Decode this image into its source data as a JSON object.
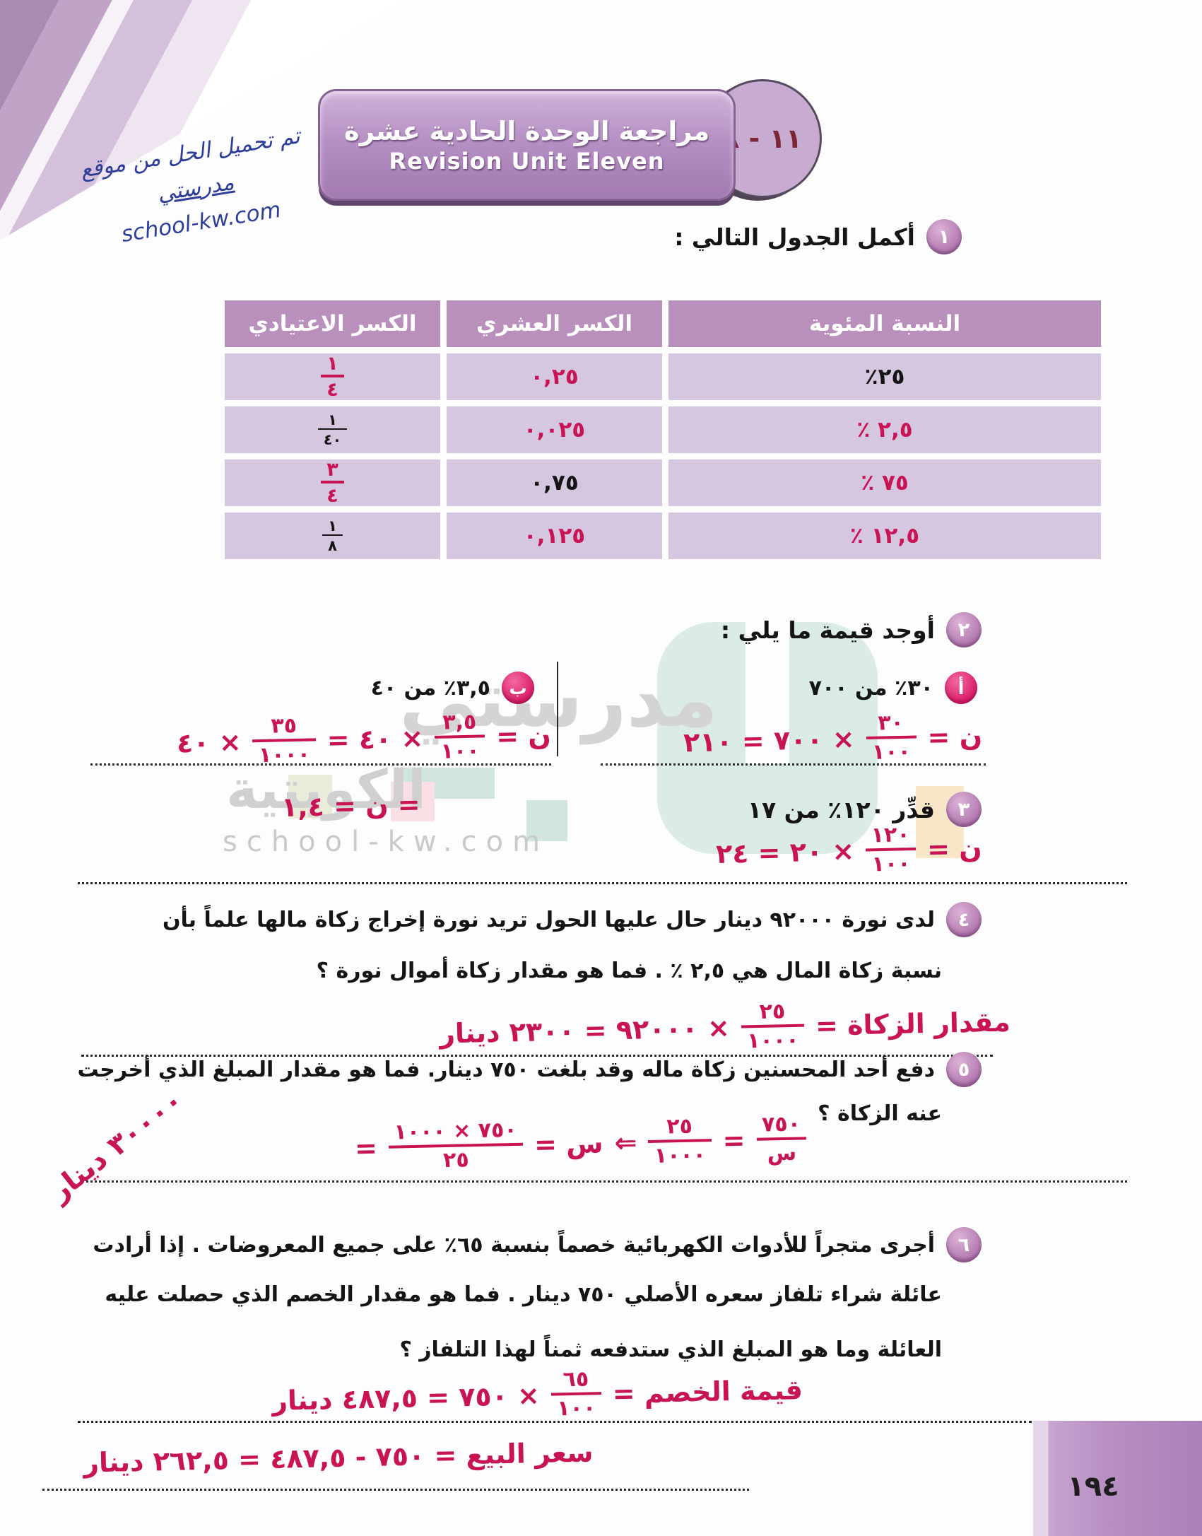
{
  "page": {
    "unit_badge": "١١ - ٨",
    "banner": {
      "title_ar": "مراجعة الوحدة الحادية عشرة",
      "title_en": "Revision Unit Eleven"
    },
    "note": {
      "line1": "تم تحميل الحل من موقع",
      "line2": "مدرستي",
      "line3": "school-kw.com"
    },
    "page_number": "١٩٤"
  },
  "watermark": {
    "name": "مدرستي",
    "sub": "الكويتية",
    "url": "school-kw.com"
  },
  "q1": {
    "num": "١",
    "text": "أكمل الجدول التالي :",
    "table": {
      "headers": {
        "percent": "النسبة المئوية",
        "decimal": "الكسر العشري",
        "fraction": "الكسر الاعتيادي"
      },
      "rows": [
        {
          "percent": "٢٥٪",
          "decimal": "٠,٢٥",
          "frac_num": "١",
          "frac_den": "٤"
        },
        {
          "percent": "٢,٥ ٪",
          "decimal": "٠,٠٢٥",
          "frac_num": "١",
          "frac_den": "٤٠"
        },
        {
          "percent": "٧٥ ٪",
          "decimal": "٠,٧٥",
          "frac_num": "٣",
          "frac_den": "٤"
        },
        {
          "percent": "١٢,٥ ٪",
          "decimal": "٠,١٢٥",
          "frac_num": "١",
          "frac_den": "٨"
        }
      ]
    }
  },
  "q2": {
    "num": "٢",
    "text": "أوجد قيمة ما يلي :",
    "a": {
      "label": "أ",
      "text": "٣٠٪ من ٧٠٠",
      "work_pre": "ن =",
      "frac_num": "٣٠",
      "frac_den": "١٠٠",
      "work_post": "× ٧٠٠ = ٢١٠"
    },
    "b": {
      "label": "ب",
      "text": "٣,٥٪ من ٤٠",
      "work_pre": "ن =",
      "frac1_num": "٣,٥",
      "frac1_den": "١٠٠",
      "work_mid": "× ٤٠ =",
      "frac2_num": "٣٥",
      "frac2_den": "١٠٠٠",
      "work_post": "× ٤٠",
      "work_line2": "= ن = ١,٤"
    }
  },
  "q3": {
    "num": "٣",
    "text": "قدِّر ١٢٠٪ من ١٧",
    "work_pre": "ن =",
    "frac_num": "١٢٠",
    "frac_den": "١٠٠",
    "work_post": "× ٢٠ = ٢٤"
  },
  "q4": {
    "num": "٤",
    "line1": "لدى نورة ٩٢٠٠٠ دينار حال عليها الحول تريد نورة إخراج زكاة مالها علماً بأن",
    "line2": "نسبة زكاة المال هي ٢,٥ ٪ . فما هو مقدار زكاة أموال نورة ؟",
    "work_pre": "مقدار الزكاة =",
    "frac_num": "٢٥",
    "frac_den": "١٠٠٠",
    "work_post": "× ٩٢٠٠٠ = ٢٣٠٠ دينار"
  },
  "q5": {
    "num": "٥",
    "line1": "دفع أحد المحسنين زكاة ماله وقد بلغت ٧٥٠ دينار. فما هو مقدار المبلغ الذي أخرجت",
    "line2": "عنه الزكاة ؟",
    "work": {
      "frac1_num": "٧٥٠",
      "frac1_den": "س",
      "eq1": "=",
      "frac2_num": "٢٥",
      "frac2_den": "١٠٠٠",
      "arrow": "⇐",
      "mid": "س =",
      "frac3_num": "٧٥٠ × ١٠٠٠",
      "frac3_den": "٢٥",
      "eq2": "=",
      "result": "٣٠٠٠٠ دينار"
    }
  },
  "q6": {
    "num": "٦",
    "line1": "أجرى متجراً للأدوات الكهربائية خصماً بنسبة ٦٥٪ على جميع المعروضات . إذا أرادت",
    "line2": "عائلة شراء تلفاز سعره الأصلي ٧٥٠ دينار . فما هو مقدار الخصم الذي حصلت عليه",
    "line3": "العائلة وما هو المبلغ الذي ستدفعه ثمناً لهذا التلفاز ؟",
    "work1_pre": "قيمة الخصم =",
    "work1_frac_num": "٦٥",
    "work1_frac_den": "١٠٠",
    "work1_post": "× ٧٥٠ = ٤٨٧,٥ دينار",
    "work2": "سعر البيع = ٧٥٠ - ٤٨٧,٥ = ٢٦٢,٥ دينار"
  },
  "colors": {
    "ink_red": "#c81355",
    "ink_blue": "#2e3e99",
    "banner_purple": "#b38fc1",
    "table_header": "#b98fbb",
    "table_cell": "#d5c7e0",
    "watermark_teal": "#dbebe6"
  }
}
